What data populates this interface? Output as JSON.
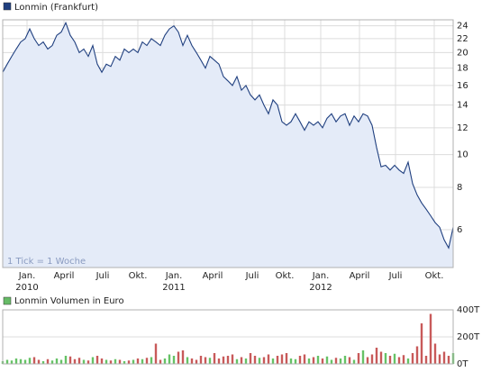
{
  "chart_data": [
    {
      "type": "line",
      "legend": "Lonmin (Frankfurt)",
      "note": "1 Tick = 1 Woche",
      "color": "#1f3f7f",
      "fill": "#e4ebf8",
      "log_scale": true,
      "grid": true,
      "values": [
        17.5,
        18.5,
        19.5,
        20.5,
        21.5,
        22,
        23.5,
        22,
        21,
        21.5,
        20.5,
        21,
        22.5,
        23,
        24.5,
        22.5,
        21.5,
        20,
        20.5,
        19.5,
        21,
        18.5,
        17.5,
        18.5,
        18.2,
        19.5,
        19,
        20.5,
        20,
        20.5,
        20,
        21.5,
        21,
        22,
        21.5,
        21,
        22.5,
        23.5,
        24,
        23,
        21,
        22.5,
        21,
        20,
        19,
        18,
        19.5,
        19,
        18.5,
        17,
        16.5,
        16,
        17,
        15.5,
        16,
        15,
        14.5,
        15,
        14,
        13.2,
        14.5,
        14,
        12.5,
        12.2,
        12.5,
        13.2,
        12.5,
        11.8,
        12.5,
        12.2,
        12.5,
        12,
        12.8,
        13.2,
        12.5,
        13,
        13.2,
        12.2,
        13,
        12.5,
        13.2,
        13,
        12.2,
        10.5,
        9.2,
        9.3,
        9,
        9.3,
        9,
        8.8,
        9.5,
        8.2,
        7.6,
        7.2,
        6.9,
        6.6,
        6.3,
        6.1,
        5.6,
        5.3,
        6.1
      ],
      "xlim": [
        0,
        100
      ],
      "xticks": [
        {
          "value": 5.4,
          "label": "Jan."
        },
        {
          "value": 13.6,
          "label": "April"
        },
        {
          "value": 22.2,
          "label": "Juli"
        },
        {
          "value": 30,
          "label": "Okt."
        },
        {
          "value": 38,
          "label": "Jan."
        },
        {
          "value": 46.6,
          "label": "April"
        },
        {
          "value": 55.4,
          "label": "Juli"
        },
        {
          "value": 62.6,
          "label": "Okt."
        },
        {
          "value": 70.6,
          "label": "Jan."
        },
        {
          "value": 79.2,
          "label": "April"
        },
        {
          "value": 87.2,
          "label": "Juli"
        },
        {
          "value": 95.8,
          "label": "Okt."
        }
      ],
      "year_labels": [
        {
          "value": 5.4,
          "label": "2010"
        },
        {
          "value": 38,
          "label": "2011"
        },
        {
          "value": 70.6,
          "label": "2012"
        }
      ],
      "ylim": [
        4.64,
        25
      ],
      "yticks": [
        6,
        8,
        10,
        12,
        14,
        16,
        18,
        20,
        22,
        24
      ]
    },
    {
      "type": "bar",
      "legend": "Lonmin Volumen in Euro",
      "legend_color": "#66bb66",
      "up_color": "#66c266",
      "down_color": "#c85a5a",
      "grid": true,
      "values": [
        20000,
        30000,
        25000,
        40000,
        35000,
        30000,
        45000,
        50000,
        30000,
        20000,
        35000,
        25000,
        40000,
        30000,
        60000,
        55000,
        35000,
        45000,
        30000,
        25000,
        50000,
        60000,
        40000,
        30000,
        25000,
        35000,
        30000,
        20000,
        25000,
        30000,
        40000,
        35000,
        45000,
        50000,
        150000,
        30000,
        40000,
        70000,
        60000,
        90000,
        100000,
        50000,
        40000,
        30000,
        60000,
        50000,
        45000,
        80000,
        40000,
        55000,
        60000,
        70000,
        35000,
        50000,
        40000,
        80000,
        60000,
        45000,
        50000,
        70000,
        40000,
        60000,
        70000,
        80000,
        40000,
        35000,
        60000,
        70000,
        40000,
        50000,
        60000,
        40000,
        55000,
        30000,
        45000,
        40000,
        60000,
        50000,
        30000,
        80000,
        100000,
        50000,
        70000,
        120000,
        90000,
        80000,
        60000,
        75000,
        50000,
        65000,
        40000,
        80000,
        130000,
        300000,
        60000,
        370000,
        150000,
        70000,
        90000,
        60000,
        80000
      ],
      "xlim": [
        0,
        100
      ],
      "ylim": [
        0,
        400000
      ],
      "yticks": [
        {
          "value": 0,
          "label": "0T"
        },
        {
          "value": 200000,
          "label": "200T"
        },
        {
          "value": 400000,
          "label": "400T"
        }
      ]
    }
  ]
}
